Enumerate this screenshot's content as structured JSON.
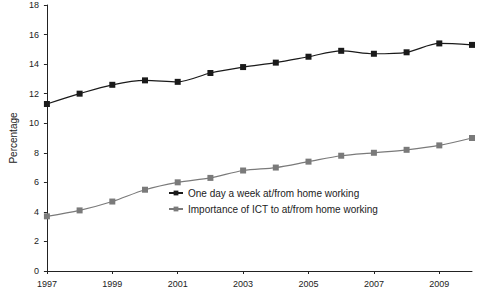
{
  "chart_data": {
    "type": "line",
    "y_label": "Percentage",
    "x": [
      1997,
      1998,
      1999,
      2000,
      2001,
      2002,
      2003,
      2004,
      2005,
      2006,
      2007,
      2008,
      2009,
      2010
    ],
    "series": [
      {
        "name": "One day a week at/from home working",
        "color": "#1a1a1a",
        "marker": "square",
        "values": [
          11.3,
          12.0,
          12.6,
          12.9,
          12.8,
          13.4,
          13.8,
          14.1,
          14.5,
          14.9,
          14.7,
          14.8,
          15.4,
          15.3
        ]
      },
      {
        "name": "Importance of ICT to at/from home working",
        "color": "#7a7a7a",
        "marker": "square",
        "values": [
          3.7,
          4.1,
          4.7,
          5.5,
          6.0,
          6.3,
          6.8,
          7.0,
          7.4,
          7.8,
          8.0,
          8.2,
          8.5,
          9.0
        ]
      }
    ],
    "xlim": [
      1997,
      2010
    ],
    "xticks": [
      1997,
      1999,
      2001,
      2003,
      2005,
      2007,
      2009
    ],
    "ylim": [
      0,
      18
    ],
    "yticks": [
      0,
      2,
      4,
      6,
      8,
      10,
      12,
      14,
      16,
      18
    ],
    "grid": false,
    "legend": "bottom"
  }
}
